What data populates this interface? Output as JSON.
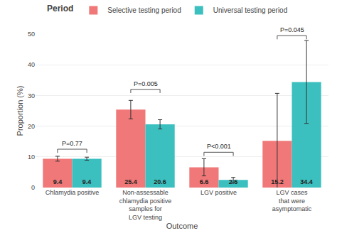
{
  "chart_data": {
    "type": "bar",
    "categories": [
      "Chlamydia positive",
      "Non-assessable\nchlamydia positive\nsamples for\nLGV testing",
      "LGV positive",
      "LGV cases\nthat were\nasymptomatic"
    ],
    "series": [
      {
        "name": "Selective testing period",
        "color": "#F07878",
        "values": [
          9.4,
          25.4,
          6.6,
          15.2
        ],
        "errors": [
          0.8,
          3.0,
          2.8,
          15.5
        ]
      },
      {
        "name": "Universal testing period",
        "color": "#3CBFBF",
        "values": [
          9.4,
          20.6,
          2.5,
          34.4
        ],
        "errors": [
          0.5,
          1.5,
          0.8,
          13.5
        ]
      }
    ],
    "xlabel": "Outcome",
    "ylabel": "Proportion (%)",
    "ylim": [
      0,
      50
    ],
    "yticks": [
      0,
      10,
      20,
      30,
      40,
      50
    ],
    "grid": true,
    "legend": "top",
    "legend_title": "Period",
    "data_labels": true,
    "annotations": [
      {
        "text": "P=0.77",
        "x": "Chlamydia positive",
        "y": 12.5
      },
      {
        "text": "P=0.005",
        "x": "Non-assessable\nchlamydia positive\nsamples for\nLGV testing",
        "y": 32.0
      },
      {
        "text": "P<0.001",
        "x": "LGV positive",
        "y": 11.5
      },
      {
        "text": "P=0.045",
        "x": "LGV cases\nthat were\nasymptomatic",
        "y": 49.5
      }
    ]
  }
}
